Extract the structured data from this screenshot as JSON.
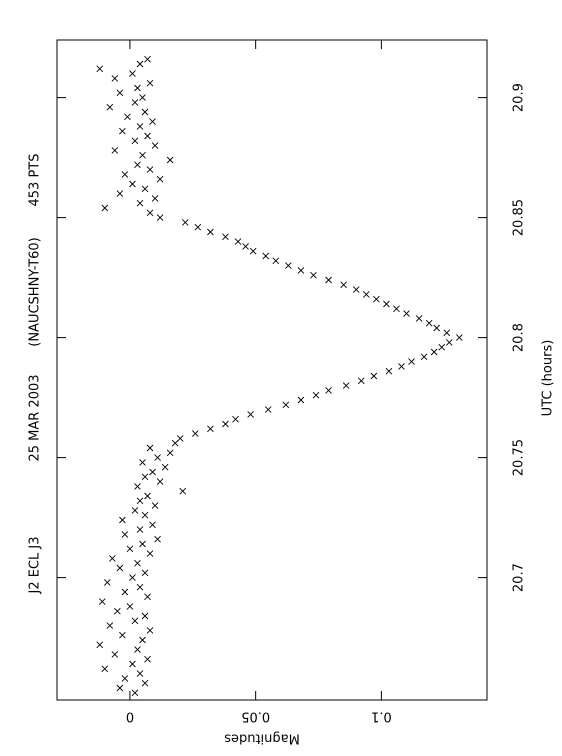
{
  "chart_data": {
    "type": "scatter",
    "annotations": [
      "J2 ECL J3",
      "25 MAR 2003",
      "(NAUCSHNY-T60)",
      "453 PTS"
    ],
    "xlabel": "UTC (hours)",
    "ylabel": "Magnitudes",
    "xlim": [
      20.649,
      20.924
    ],
    "xticks": [
      20.7,
      20.75,
      20.8,
      20.85,
      20.9
    ],
    "ylim": [
      -0.029,
      0.142
    ],
    "yticks": [
      0,
      0.05,
      0.1
    ],
    "color": "#000000",
    "x": [
      20.652,
      20.654,
      20.656,
      20.658,
      20.66,
      20.662,
      20.664,
      20.666,
      20.668,
      20.67,
      20.672,
      20.674,
      20.676,
      20.678,
      20.68,
      20.682,
      20.684,
      20.686,
      20.688,
      20.69,
      20.692,
      20.694,
      20.696,
      20.698,
      20.7,
      20.702,
      20.704,
      20.706,
      20.708,
      20.71,
      20.712,
      20.714,
      20.716,
      20.718,
      20.72,
      20.722,
      20.724,
      20.726,
      20.728,
      20.73,
      20.732,
      20.734,
      20.736,
      20.738,
      20.74,
      20.742,
      20.744,
      20.746,
      20.748,
      20.75,
      20.752,
      20.754,
      20.756,
      20.758,
      20.76,
      20.762,
      20.764,
      20.766,
      20.768,
      20.77,
      20.772,
      20.774,
      20.776,
      20.778,
      20.78,
      20.782,
      20.784,
      20.786,
      20.788,
      20.79,
      20.792,
      20.794,
      20.796,
      20.798,
      20.8,
      20.802,
      20.804,
      20.806,
      20.808,
      20.81,
      20.812,
      20.814,
      20.816,
      20.818,
      20.82,
      20.822,
      20.824,
      20.826,
      20.828,
      20.83,
      20.832,
      20.834,
      20.836,
      20.838,
      20.84,
      20.842,
      20.844,
      20.846,
      20.848,
      20.85,
      20.852,
      20.854,
      20.856,
      20.858,
      20.86,
      20.862,
      20.864,
      20.866,
      20.868,
      20.87,
      20.872,
      20.874,
      20.876,
      20.878,
      20.88,
      20.882,
      20.884,
      20.886,
      20.888,
      20.89,
      20.892,
      20.894,
      20.896,
      20.898,
      20.9,
      20.902,
      20.904,
      20.906,
      20.908,
      20.91,
      20.912,
      20.914,
      20.916
    ],
    "values": [
      0.002,
      -0.004,
      0.006,
      -0.002,
      0.004,
      -0.01,
      0.001,
      0.007,
      -0.006,
      0.003,
      -0.012,
      0.005,
      -0.003,
      0.008,
      -0.008,
      0.002,
      0.006,
      -0.005,
      0.0,
      -0.011,
      0.007,
      -0.002,
      0.004,
      -0.009,
      0.001,
      0.006,
      -0.004,
      0.003,
      -0.007,
      0.008,
      0.0,
      0.005,
      0.011,
      -0.002,
      0.004,
      0.009,
      -0.003,
      0.006,
      0.002,
      0.01,
      0.004,
      0.007,
      0.021,
      0.003,
      0.012,
      0.006,
      0.009,
      0.014,
      0.005,
      0.011,
      0.016,
      0.008,
      0.018,
      0.02,
      0.026,
      0.032,
      0.038,
      0.042,
      0.048,
      0.055,
      0.062,
      0.068,
      0.074,
      0.079,
      0.086,
      0.092,
      0.097,
      0.103,
      0.108,
      0.112,
      0.117,
      0.121,
      0.124,
      0.127,
      0.131,
      0.126,
      0.122,
      0.119,
      0.115,
      0.11,
      0.106,
      0.102,
      0.098,
      0.094,
      0.09,
      0.085,
      0.079,
      0.073,
      0.068,
      0.063,
      0.058,
      0.054,
      0.049,
      0.046,
      0.043,
      0.038,
      0.032,
      0.027,
      0.022,
      0.012,
      0.008,
      -0.01,
      0.004,
      0.01,
      -0.004,
      0.006,
      0.001,
      0.012,
      -0.002,
      0.008,
      0.003,
      0.016,
      0.005,
      -0.006,
      0.01,
      0.002,
      0.007,
      -0.003,
      0.004,
      0.009,
      -0.001,
      0.006,
      -0.008,
      0.002,
      0.005,
      -0.004,
      0.003,
      0.008,
      -0.006,
      0.001,
      -0.012,
      0.004,
      0.007
    ]
  }
}
